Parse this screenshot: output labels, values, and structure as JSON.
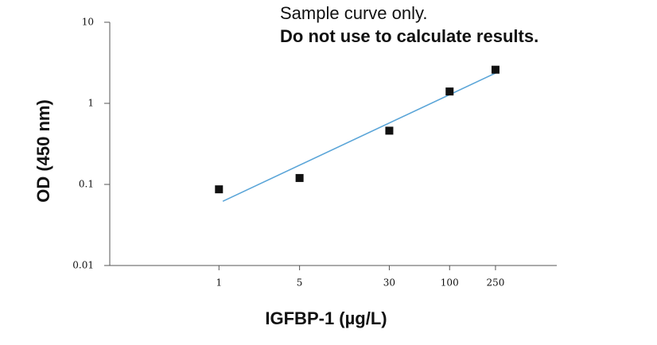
{
  "chart_data": {
    "type": "scatter",
    "annotation": [
      "Sample curve only.",
      "Do not use to calculate results."
    ],
    "xlabel": "IGFBP-1 (µg/L)",
    "ylabel": "OD (450 nm)",
    "series": [
      {
        "x": [
          1,
          5,
          30,
          100,
          250
        ],
        "values": [
          0.087,
          0.12,
          0.46,
          1.4,
          2.6
        ],
        "color": "#111111"
      }
    ],
    "fit": {
      "x": [
        1.08,
        250
      ],
      "values": [
        0.062,
        2.36
      ],
      "color": "#5aa5d8"
    },
    "xlog": true,
    "ylog": true,
    "xlim": [
      0.113,
      850
    ],
    "ylim": [
      0.01,
      10
    ],
    "xticks": [
      1,
      5,
      30,
      100,
      250
    ],
    "yticks": [
      10,
      1,
      0.1,
      0.01
    ]
  }
}
